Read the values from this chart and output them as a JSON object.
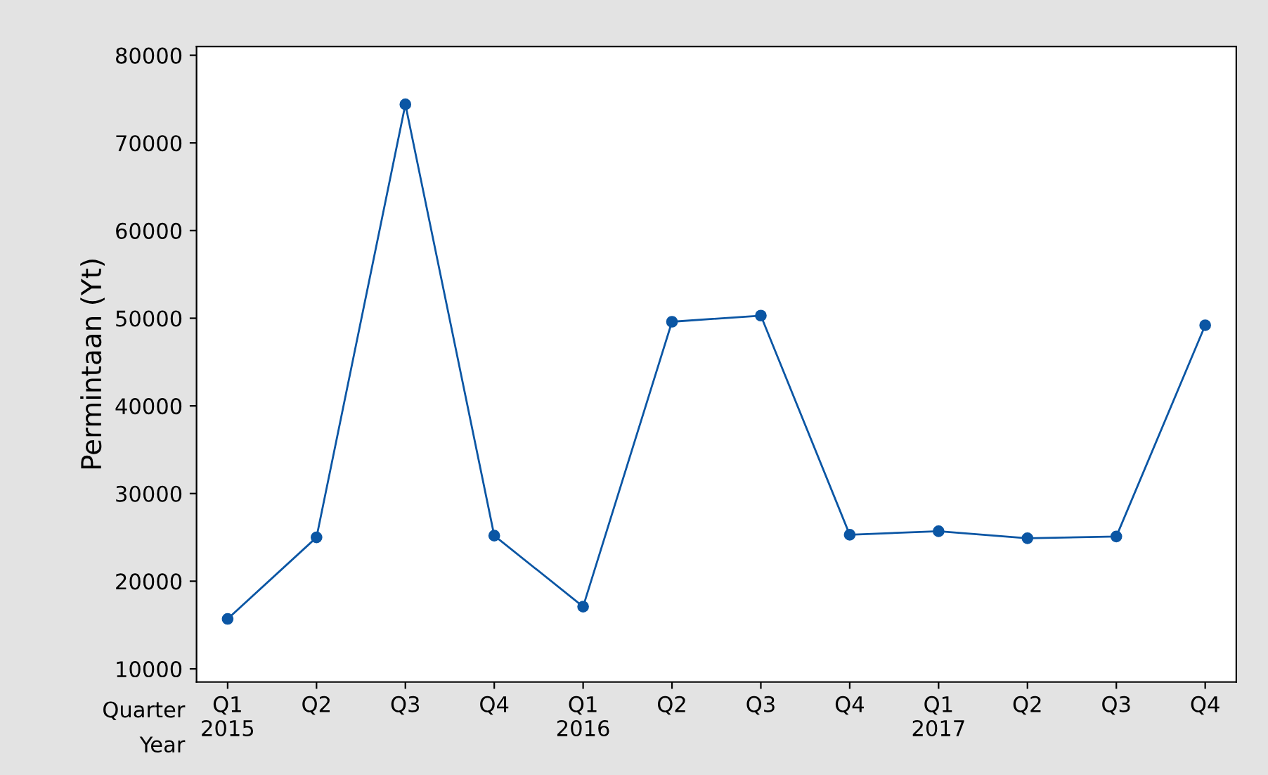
{
  "chart_data": {
    "type": "line",
    "ylabel": "Permintaan (Yt)",
    "categories": [
      "Q1\n2015",
      "Q2",
      "Q3",
      "Q4",
      "Q1\n2016",
      "Q2",
      "Q3",
      "Q4",
      "Q1\n2017",
      "Q2",
      "Q3",
      "Q4"
    ],
    "series": [
      {
        "color": "#0b56a4",
        "values": [
          15700,
          25000,
          74400,
          25200,
          17100,
          49600,
          50300,
          25300,
          25700,
          24900,
          25100,
          49200
        ]
      }
    ],
    "ylim": [
      8500,
      81000
    ],
    "yticks": [
      10000,
      20000,
      30000,
      40000,
      50000,
      60000,
      70000,
      80000
    ],
    "annotations": [
      "Quarter",
      "Year"
    ],
    "grid": false,
    "legend": false,
    "marker": "circle",
    "line_style": "solid"
  }
}
